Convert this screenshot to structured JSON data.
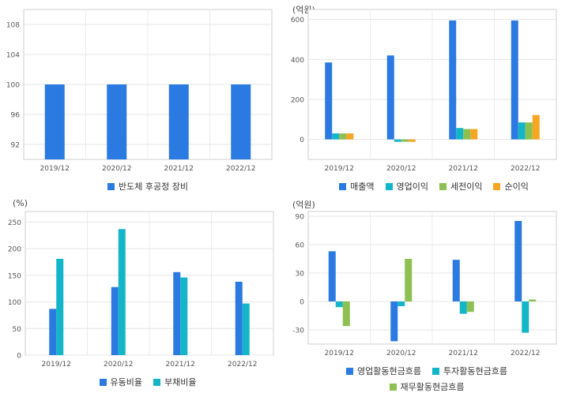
{
  "colors": {
    "blue": "#2a7ae2",
    "teal": "#13b5c8",
    "green": "#8cc152",
    "orange": "#f5a623"
  },
  "charts": [
    {
      "unit": "",
      "chart_data": {
        "type": "bar",
        "categories": [
          "2019/12",
          "2020/12",
          "2021/12",
          "2022/12"
        ],
        "ylim": [
          90,
          110
        ],
        "yticks": [
          92,
          96,
          100,
          104,
          108
        ],
        "grid": true,
        "legend_placement": "bottom",
        "series": [
          {
            "name": "반도체 후공정 장비",
            "color": "#2a7ae2",
            "values": [
              100,
              100,
              100,
              100
            ]
          }
        ]
      }
    },
    {
      "unit": "(억원)",
      "chart_data": {
        "type": "bar",
        "categories": [
          "2019/12",
          "2020/12",
          "2021/12",
          "2022/12"
        ],
        "ylim": [
          -100,
          650
        ],
        "yticks": [
          0,
          200,
          400,
          600
        ],
        "grid": true,
        "legend_placement": "bottom",
        "series": [
          {
            "name": "매출액",
            "color": "#2a7ae2",
            "values": [
              385,
              420,
              595,
              595
            ]
          },
          {
            "name": "영업이익",
            "color": "#13b5c8",
            "values": [
              30,
              -12,
              57,
              85
            ]
          },
          {
            "name": "세전이익",
            "color": "#8cc152",
            "values": [
              30,
              -12,
              52,
              85
            ]
          },
          {
            "name": "순이익",
            "color": "#f5a623",
            "values": [
              30,
              -12,
              52,
              122
            ]
          }
        ]
      }
    },
    {
      "unit": "(%)",
      "chart_data": {
        "type": "bar",
        "categories": [
          "2019/12",
          "2020/12",
          "2021/12",
          "2022/12"
        ],
        "ylim": [
          0,
          270
        ],
        "yticks": [
          0,
          50,
          100,
          150,
          200,
          250
        ],
        "grid": true,
        "legend_placement": "bottom",
        "series": [
          {
            "name": "유동비율",
            "color": "#2a7ae2",
            "values": [
              87,
              128,
              156,
              138
            ]
          },
          {
            "name": "부채비율",
            "color": "#13b5c8",
            "values": [
              181,
              237,
              146,
              97
            ]
          }
        ]
      }
    },
    {
      "unit": "(억원)",
      "chart_data": {
        "type": "bar",
        "categories": [
          "2019/12",
          "2020/12",
          "2021/12",
          "2022/12"
        ],
        "ylim": [
          -45,
          95
        ],
        "yticks": [
          -30,
          0,
          30,
          60,
          90
        ],
        "grid": true,
        "legend_placement": "bottom",
        "series": [
          {
            "name": "영업활동현금흐름",
            "color": "#2a7ae2",
            "values": [
              53,
              -42,
              44,
              85
            ]
          },
          {
            "name": "투자활동현금흐름",
            "color": "#13b5c8",
            "values": [
              -6,
              -5,
              -13,
              -33
            ]
          },
          {
            "name": "재무활동현금흐름",
            "color": "#8cc152",
            "values": [
              -26,
              45,
              -11,
              2
            ]
          }
        ]
      }
    }
  ]
}
